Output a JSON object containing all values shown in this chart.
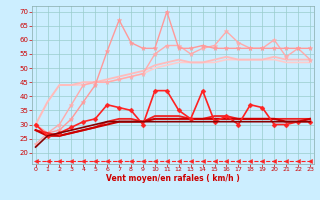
{
  "x": [
    0,
    1,
    2,
    3,
    4,
    5,
    6,
    7,
    8,
    9,
    10,
    11,
    12,
    13,
    14,
    15,
    16,
    17,
    18,
    19,
    20,
    21,
    22,
    23
  ],
  "lines": [
    {
      "y": [
        30,
        38,
        44,
        44,
        44,
        45,
        45,
        46,
        47,
        48,
        50,
        51,
        52,
        52,
        52,
        52,
        53,
        53,
        53,
        53,
        53,
        52,
        52,
        52
      ],
      "color": "#ffcccc",
      "marker": null,
      "lw": 1.2,
      "ms": 0,
      "dashed": false
    },
    {
      "y": [
        30,
        38,
        44,
        44,
        45,
        45,
        46,
        47,
        48,
        49,
        51,
        52,
        53,
        52,
        52,
        53,
        54,
        53,
        53,
        53,
        54,
        53,
        53,
        53
      ],
      "color": "#ffbbbb",
      "marker": null,
      "lw": 1.3,
      "ms": 0,
      "dashed": false
    },
    {
      "y": [
        23,
        27,
        30,
        37,
        44,
        45,
        45,
        46,
        47,
        48,
        55,
        58,
        58,
        55,
        57,
        58,
        63,
        59,
        57,
        57,
        60,
        54,
        57,
        53
      ],
      "color": "#ffaaaa",
      "marker": "*",
      "lw": 1.0,
      "ms": 3.5,
      "dashed": false
    },
    {
      "y": [
        30,
        27,
        28,
        32,
        38,
        44,
        56,
        67,
        59,
        57,
        57,
        70,
        57,
        57,
        58,
        57,
        57,
        57,
        57,
        57,
        57,
        57,
        57,
        57
      ],
      "color": "#ff9999",
      "marker": "*",
      "lw": 1.0,
      "ms": 3.5,
      "dashed": false
    },
    {
      "y": [
        28,
        27,
        26,
        27,
        28,
        29,
        31,
        32,
        32,
        31,
        33,
        33,
        33,
        32,
        32,
        33,
        33,
        32,
        32,
        32,
        32,
        32,
        32,
        32
      ],
      "color": "#ee2222",
      "marker": null,
      "lw": 1.3,
      "ms": 0,
      "dashed": false
    },
    {
      "y": [
        28,
        26,
        26,
        27,
        28,
        29,
        30,
        31,
        31,
        31,
        32,
        32,
        32,
        32,
        32,
        32,
        32,
        32,
        32,
        32,
        32,
        31,
        31,
        32
      ],
      "color": "#cc0000",
      "marker": null,
      "lw": 1.5,
      "ms": 0,
      "dashed": false
    },
    {
      "y": [
        30,
        26,
        27,
        29,
        31,
        32,
        37,
        36,
        35,
        30,
        42,
        42,
        35,
        32,
        42,
        31,
        33,
        30,
        37,
        36,
        30,
        30,
        31,
        31
      ],
      "color": "#ff2222",
      "marker": "D",
      "lw": 1.2,
      "ms": 2.5,
      "dashed": false
    },
    {
      "y": [
        22,
        26,
        27,
        28,
        29,
        30,
        31,
        31,
        31,
        31,
        31,
        31,
        31,
        31,
        31,
        31,
        31,
        31,
        31,
        31,
        31,
        31,
        31,
        31
      ],
      "color": "#880000",
      "marker": null,
      "lw": 1.2,
      "ms": 0,
      "dashed": false
    },
    {
      "y": [
        17,
        17,
        17,
        17,
        17,
        17,
        17,
        17,
        17,
        17,
        17,
        17,
        17,
        17,
        17,
        17,
        17,
        17,
        17,
        17,
        17,
        17,
        17,
        17
      ],
      "color": "#ff2222",
      "marker": "<",
      "lw": 0.8,
      "ms": 3,
      "dashed": true
    }
  ],
  "xlabel": "Vent moyen/en rafales ( km/h )",
  "yticks": [
    20,
    25,
    30,
    35,
    40,
    45,
    50,
    55,
    60,
    65,
    70
  ],
  "xticks": [
    0,
    1,
    2,
    3,
    4,
    5,
    6,
    7,
    8,
    9,
    10,
    11,
    12,
    13,
    14,
    15,
    16,
    17,
    18,
    19,
    20,
    21,
    22,
    23
  ],
  "ylim": [
    16,
    72
  ],
  "xlim": [
    -0.3,
    23.3
  ],
  "bg_color": "#cceeff",
  "grid_color": "#99cccc",
  "label_color": "#cc0000",
  "tick_color": "#cc0000"
}
